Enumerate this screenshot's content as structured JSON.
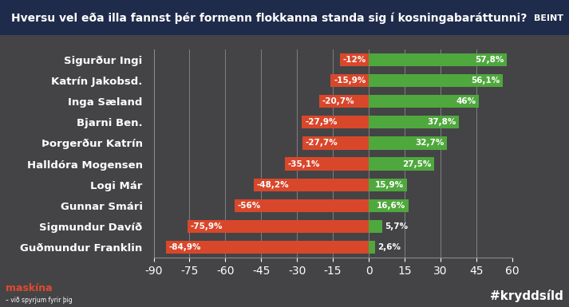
{
  "chart_data": {
    "type": "bar",
    "orientation": "horizontal",
    "title": "Hversu vel eða illa fannst þér formenn flokkanna standa sig í kosningabaráttunni?",
    "categories": [
      "Sigurður Ingi",
      "Katrín Jakobsd.",
      "Inga Sæland",
      "Bjarni Ben.",
      "Þorgerður Katrín",
      "Halldóra Mogensen",
      "Logi Már",
      "Gunnar Smári",
      "Sigmundur Davíð",
      "Guðmundur Franklin"
    ],
    "series": [
      {
        "color": "#d9472b",
        "values": [
          -12,
          -15.9,
          -20.7,
          -27.9,
          -27.7,
          -35.1,
          -48.2,
          -56,
          -75.9,
          -84.9
        ],
        "value_labels": [
          "-12%",
          "-15,9%",
          "-20,7%",
          "-27,9%",
          "-27,7%",
          "-35,1%",
          "-48,2%",
          "-56%",
          "-75,9%",
          "-84,9%"
        ]
      },
      {
        "color": "#4fa83d",
        "values": [
          57.8,
          56.1,
          46,
          37.8,
          32.7,
          27.5,
          15.9,
          16.6,
          5.7,
          2.6
        ],
        "value_labels": [
          "57,8%",
          "56,1%",
          "46%",
          "37,8%",
          "32,7%",
          "27,5%",
          "15,9%",
          "16,6%",
          "5,7%",
          "2,6%"
        ]
      }
    ],
    "xlim": [
      -90,
      60
    ],
    "xticks": [
      -90,
      -75,
      -60,
      -45,
      -30,
      -15,
      0,
      15,
      30,
      45,
      60
    ],
    "grid": true,
    "data_labels": true,
    "annotations": [
      "BEINT",
      "#kryddsíld",
      "maskína",
      "– við spyrjum fyrir þig"
    ]
  }
}
